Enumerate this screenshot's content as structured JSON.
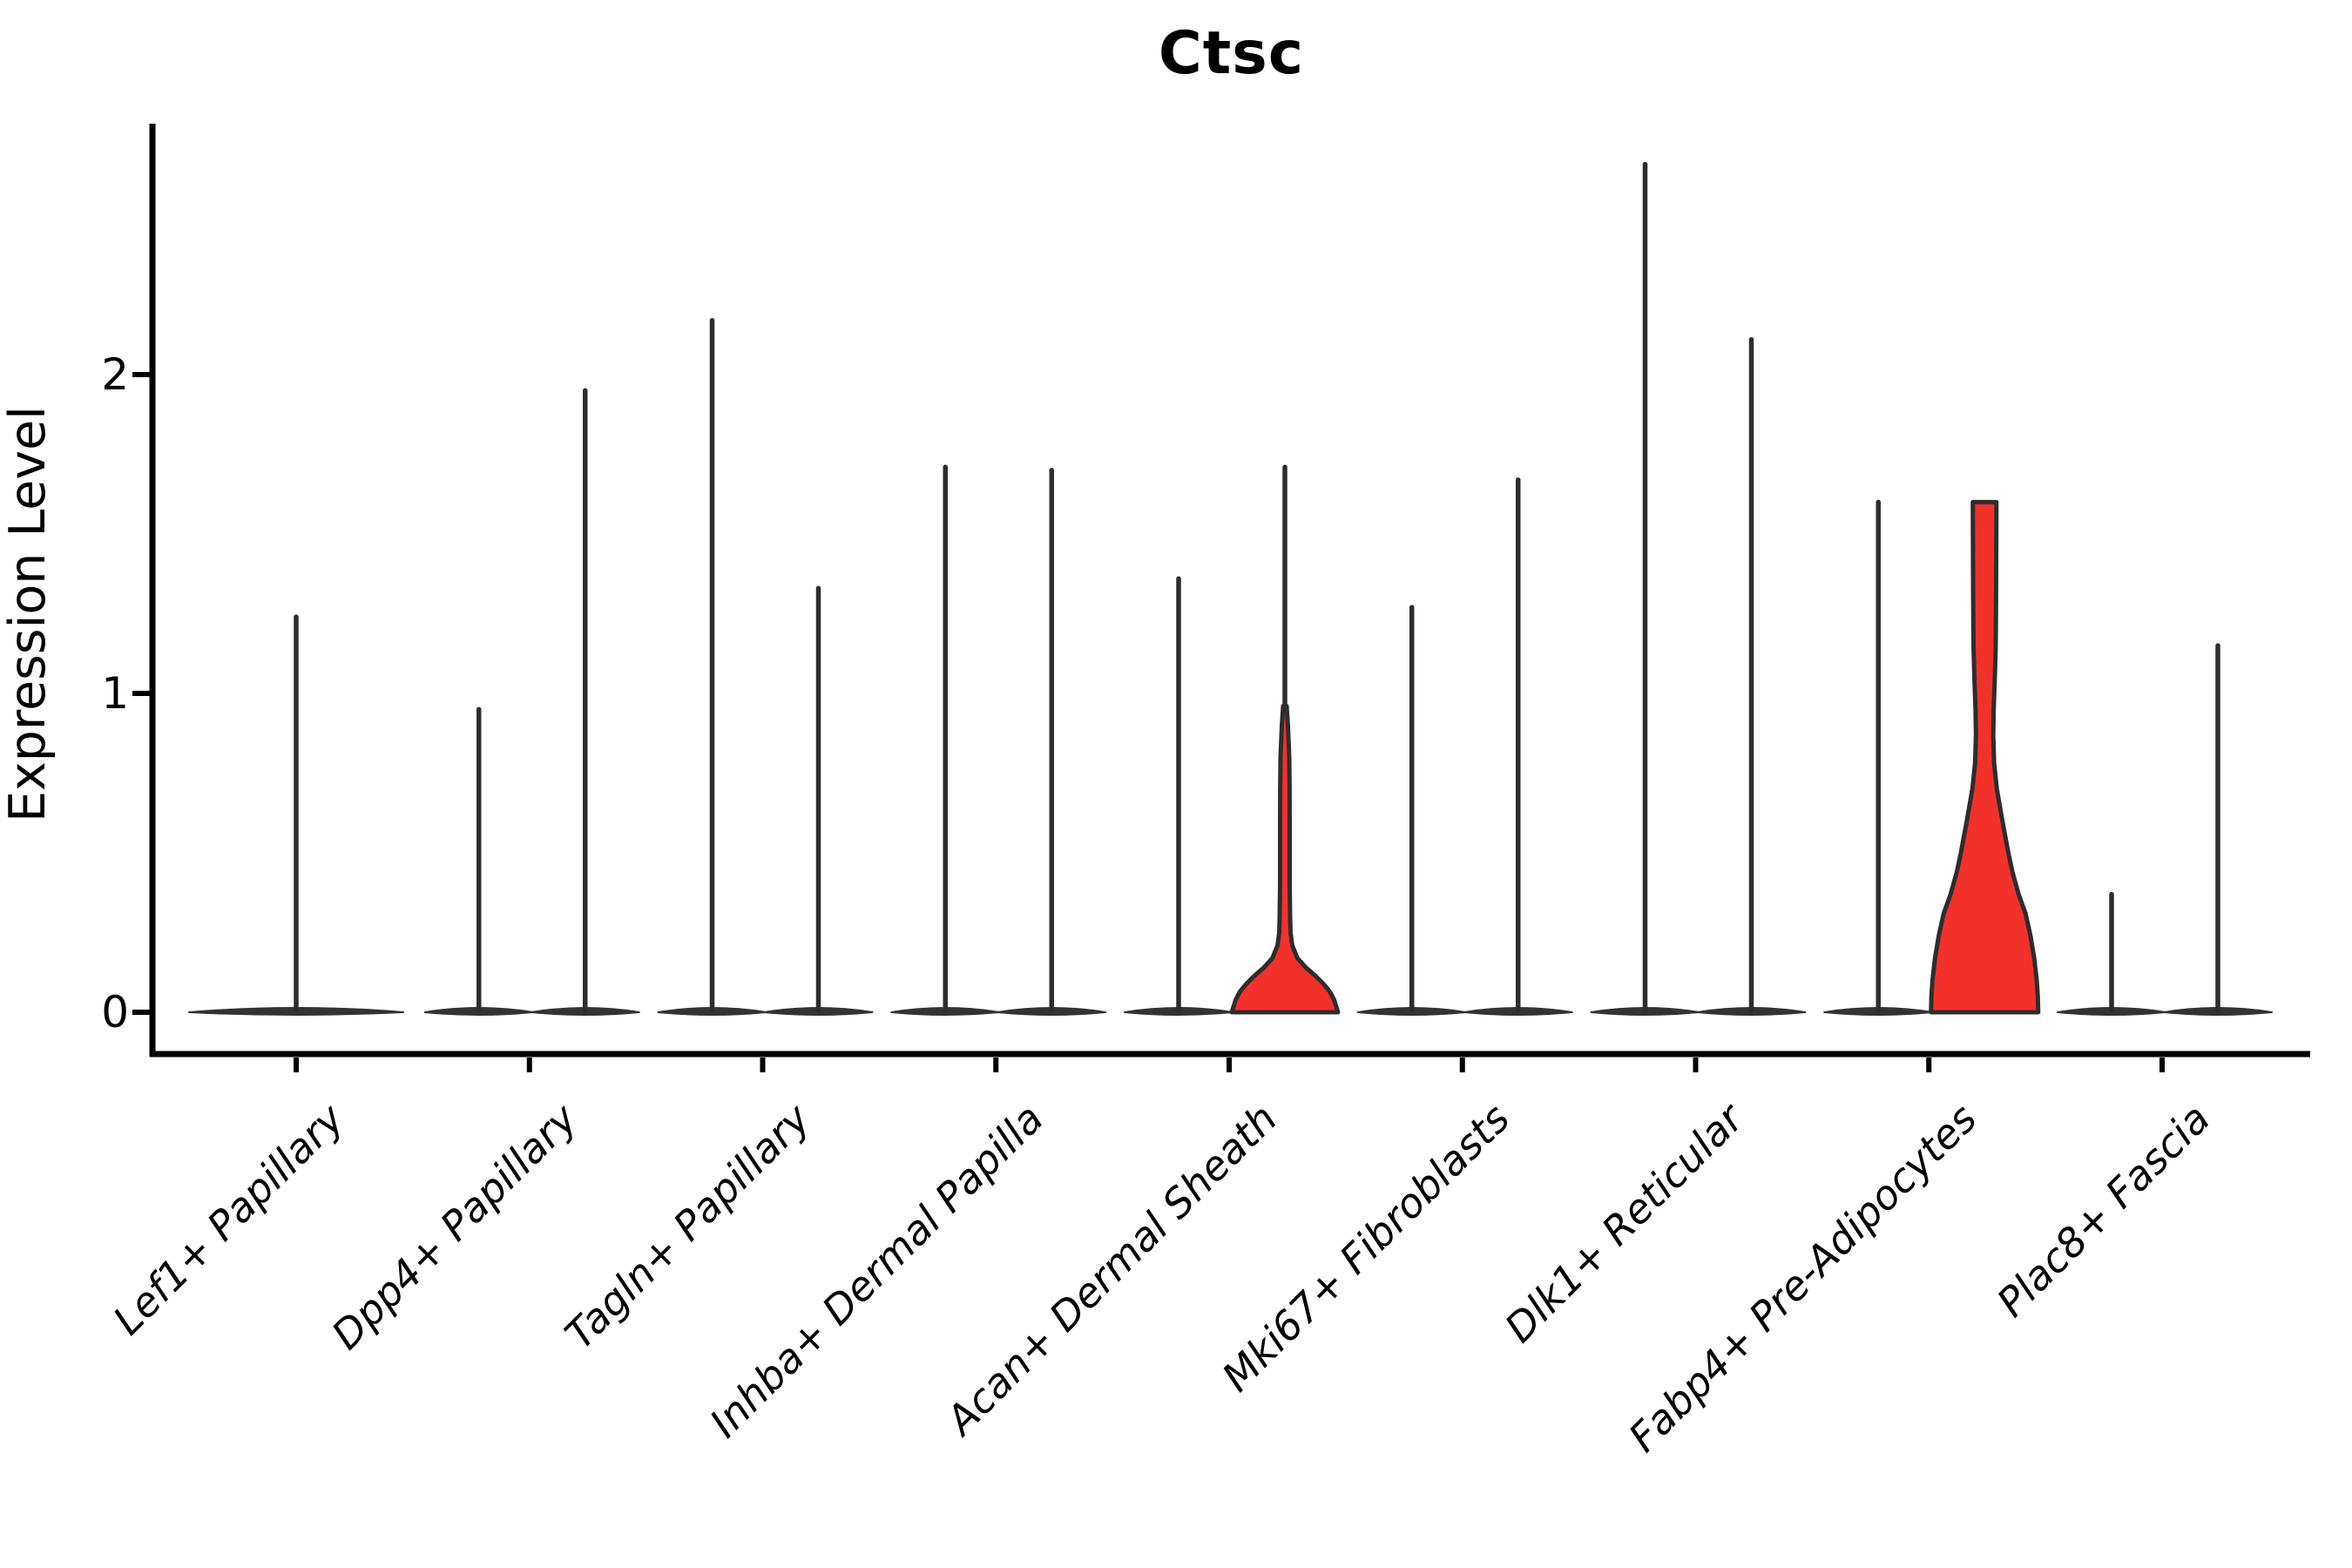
{
  "chart_data": {
    "type": "violin",
    "title": "Ctsc",
    "ylabel": "Expression Level",
    "ytick_labels": [
      "0",
      "1",
      "2"
    ],
    "yticks": [
      0,
      1,
      2
    ],
    "ylim": [
      -0.13,
      2.79
    ],
    "x_rotation_deg": 45,
    "grid": false,
    "legend": "none",
    "categories": [
      "Lef1+ Papillary",
      "Dpp4+ Papillary",
      "Tagln+ Papillary",
      "Inhba+ Dermal Papilla",
      "Acan+ Dermal Sheath",
      "Mki67+ Fibroblasts",
      "Dlk1+ Reticular",
      "Fabp4+ Pre-Adipocytes",
      "Plac8+ Fascia"
    ],
    "series": [
      {
        "category": "Lef1+ Papillary",
        "violins": [
          {
            "side": "single",
            "max": 1.24,
            "filled": false
          }
        ]
      },
      {
        "category": "Dpp4+ Papillary",
        "violins": [
          {
            "side": "left",
            "max": 0.95,
            "filled": false
          },
          {
            "side": "right",
            "max": 1.95,
            "filled": false
          }
        ]
      },
      {
        "category": "Tagln+ Papillary",
        "violins": [
          {
            "side": "left",
            "max": 2.17,
            "filled": false
          },
          {
            "side": "right",
            "max": 1.33,
            "filled": false
          }
        ]
      },
      {
        "category": "Inhba+ Dermal Papilla",
        "violins": [
          {
            "side": "left",
            "max": 1.71,
            "filled": false
          },
          {
            "side": "right",
            "max": 1.7,
            "filled": false
          }
        ]
      },
      {
        "category": "Acan+ Dermal Sheath",
        "violins": [
          {
            "side": "left",
            "max": 1.36,
            "filled": false
          },
          {
            "side": "right",
            "max": 1.71,
            "filled": true,
            "spike_above_body": true,
            "profile": [
              [
                0.96,
                0.032
              ],
              [
                0.9,
                0.056
              ],
              [
                0.8,
                0.081
              ],
              [
                0.7,
                0.087
              ],
              [
                0.6,
                0.089
              ],
              [
                0.5,
                0.089
              ],
              [
                0.4,
                0.089
              ],
              [
                0.3,
                0.097
              ],
              [
                0.25,
                0.105
              ],
              [
                0.21,
                0.135
              ],
              [
                0.17,
                0.23
              ],
              [
                0.14,
                0.39
              ],
              [
                0.115,
                0.56
              ],
              [
                0.09,
                0.71
              ],
              [
                0.065,
                0.83
              ],
              [
                0.04,
                0.91
              ],
              [
                0.0,
                0.984
              ]
            ]
          }
        ]
      },
      {
        "category": "Mki67+ Fibroblasts",
        "violins": [
          {
            "side": "left",
            "max": 1.27,
            "filled": false
          },
          {
            "side": "right",
            "max": 1.67,
            "filled": false
          }
        ]
      },
      {
        "category": "Dlk1+ Reticular",
        "violins": [
          {
            "side": "left",
            "max": 2.66,
            "filled": false
          },
          {
            "side": "right",
            "max": 2.11,
            "filled": false
          }
        ]
      },
      {
        "category": "Fabp4+ Pre-Adipocytes",
        "violins": [
          {
            "side": "left",
            "max": 1.6,
            "filled": false
          },
          {
            "side": "right",
            "max": 1.6,
            "filled": true,
            "spike_above_body": false,
            "flat_top": true,
            "profile": [
              [
                1.6,
                0.218
              ],
              [
                1.45,
                0.215
              ],
              [
                1.3,
                0.212
              ],
              [
                1.15,
                0.205
              ],
              [
                1.05,
                0.19
              ],
              [
                0.95,
                0.168
              ],
              [
                0.87,
                0.16
              ],
              [
                0.78,
                0.177
              ],
              [
                0.7,
                0.226
              ],
              [
                0.6,
                0.33
              ],
              [
                0.5,
                0.44
              ],
              [
                0.44,
                0.516
              ],
              [
                0.37,
                0.63
              ],
              [
                0.31,
                0.758
              ],
              [
                0.24,
                0.85
              ],
              [
                0.17,
                0.919
              ],
              [
                0.1,
                0.966
              ],
              [
                0.05,
                0.985
              ],
              [
                0.0,
                0.992
              ]
            ]
          }
        ]
      },
      {
        "category": "Plac8+ Fascia",
        "violins": [
          {
            "side": "left",
            "max": 0.37,
            "filled": false
          },
          {
            "side": "right",
            "max": 1.15,
            "filled": false
          }
        ]
      }
    ],
    "colors": {
      "highlight_fill": "#F3312B",
      "outline": "#2D2D2D",
      "collapsed_violin": "#333333",
      "axis": "#000000",
      "text": "#000000"
    }
  }
}
